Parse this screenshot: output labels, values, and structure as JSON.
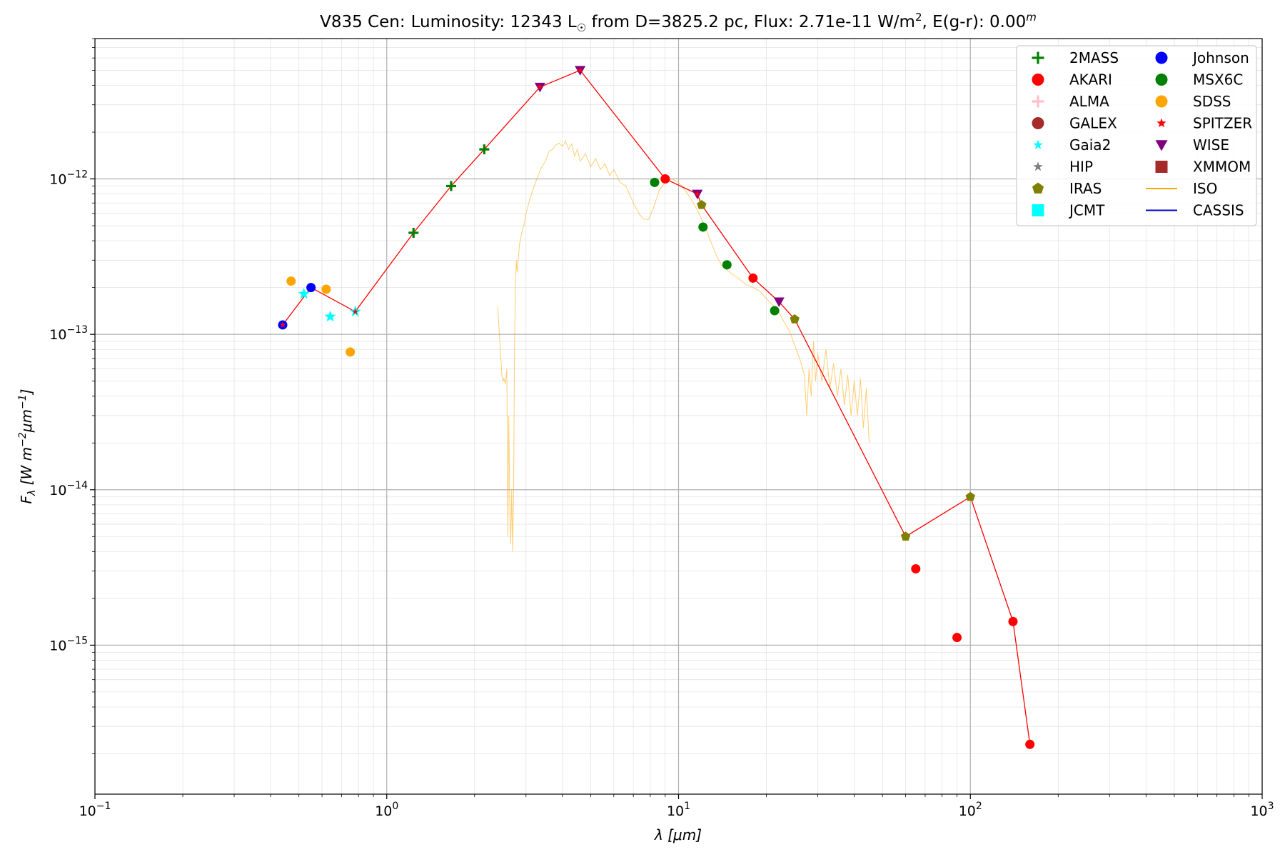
{
  "chart_data": {
    "type": "scatter",
    "title": {
      "star": "V835 Cen:",
      "lum_label": "Luminosity: 12343 L",
      "lum_sub": "☉",
      "dist": " from D=3825.2 pc, Flux: 2.71e-11 W/m",
      "flux_sup": "2",
      "ext": ", E(g-r): 0.00",
      "ext_sup": "m"
    },
    "xlabel": {
      "main": "λ ",
      "unit": "[μm]"
    },
    "ylabel": {
      "f": "F",
      "sub": "λ",
      "b1": " [W m",
      "e1": "−2",
      "b2": "μm",
      "e2": "−1",
      "b3": "]"
    },
    "x_scale": "log",
    "y_scale": "log",
    "xlim": [
      0.1,
      1000
    ],
    "ylim": [
      1.1e-16,
      8e-12
    ],
    "grid": true,
    "legend_position": "top-right",
    "xticks": [
      {
        "value": 0.1,
        "base": "10",
        "exp": "−1"
      },
      {
        "value": 1,
        "base": "10",
        "exp": "0"
      },
      {
        "value": 10,
        "base": "10",
        "exp": "1"
      },
      {
        "value": 100,
        "base": "10",
        "exp": "2"
      },
      {
        "value": 1000,
        "base": "10",
        "exp": "3"
      }
    ],
    "yticks": [
      {
        "value": 1e-15,
        "base": "10",
        "exp": "−15"
      },
      {
        "value": 1e-14,
        "base": "10",
        "exp": "−14"
      },
      {
        "value": 1e-13,
        "base": "10",
        "exp": "−13"
      },
      {
        "value": 1e-12,
        "base": "10",
        "exp": "−12"
      }
    ],
    "legend": [
      {
        "label": "2MASS",
        "marker": "plus",
        "color": "#008000"
      },
      {
        "label": "AKARI",
        "marker": "circle",
        "color": "#ff0000"
      },
      {
        "label": "ALMA",
        "marker": "plus",
        "color": "#ffc0cb"
      },
      {
        "label": "GALEX",
        "marker": "circle",
        "color": "#a52a2a"
      },
      {
        "label": "Gaia2",
        "marker": "star",
        "color": "#00ffff"
      },
      {
        "label": "HIP",
        "marker": "star",
        "color": "#808080"
      },
      {
        "label": "IRAS",
        "marker": "pentagon",
        "color": "#808000"
      },
      {
        "label": "JCMT",
        "marker": "square",
        "color": "#00ffff"
      },
      {
        "label": "Johnson",
        "marker": "circle",
        "color": "#0000ff"
      },
      {
        "label": "MSX6C",
        "marker": "circle",
        "color": "#008000"
      },
      {
        "label": "SDSS",
        "marker": "circle",
        "color": "#ffa500"
      },
      {
        "label": "SPITZER",
        "marker": "star",
        "color": "#ff0000"
      },
      {
        "label": "WISE",
        "marker": "triangle-down",
        "color": "#800080"
      },
      {
        "label": "XMMOM",
        "marker": "square",
        "color": "#a52a2a"
      },
      {
        "label": "ISO",
        "marker": "line",
        "color": "#ffa500"
      },
      {
        "label": "CASSIS",
        "marker": "line",
        "color": "#0000cc"
      }
    ],
    "series": [
      {
        "name": "2MASS",
        "marker": "plus",
        "color": "#008000",
        "points": [
          [
            1.235,
            4.5e-13
          ],
          [
            1.662,
            9e-13
          ],
          [
            2.159,
            1.55e-12
          ]
        ]
      },
      {
        "name": "AKARI",
        "marker": "circle",
        "color": "#ff0000",
        "points": [
          [
            9.0,
            1e-12
          ],
          [
            18.0,
            2.3e-13
          ],
          [
            65.0,
            3.1e-15
          ],
          [
            90.0,
            1.12e-15
          ],
          [
            140.0,
            1.42e-15
          ],
          [
            160.0,
            2.3e-16
          ]
        ]
      },
      {
        "name": "Johnson",
        "marker": "circle",
        "color": "#0000ff",
        "points": [
          [
            0.44,
            1.15e-13
          ],
          [
            0.55,
            2e-13
          ]
        ]
      },
      {
        "name": "MSX6C",
        "marker": "circle",
        "color": "#008000",
        "points": [
          [
            8.28,
            9.5e-13
          ],
          [
            12.13,
            4.9e-13
          ],
          [
            14.65,
            2.8e-13
          ],
          [
            21.34,
            1.42e-13
          ]
        ]
      },
      {
        "name": "SDSS",
        "marker": "circle",
        "color": "#ffa500",
        "points": [
          [
            0.47,
            2.2e-13
          ],
          [
            0.62,
            1.95e-13
          ],
          [
            0.75,
            7.7e-14
          ]
        ]
      },
      {
        "name": "Gaia2",
        "marker": "star",
        "color": "#00ffff",
        "points": [
          [
            0.52,
            1.82e-13
          ],
          [
            0.64,
            1.3e-13
          ],
          [
            0.78,
            1.4e-13
          ]
        ]
      },
      {
        "name": "IRAS",
        "marker": "pentagon",
        "color": "#808000",
        "points": [
          [
            12.0,
            6.8e-13
          ],
          [
            25.0,
            1.25e-13
          ],
          [
            60.0,
            5e-15
          ],
          [
            100.0,
            9e-15
          ]
        ]
      },
      {
        "name": "WISE",
        "marker": "triangle-down",
        "color": "#800080",
        "points": [
          [
            3.35,
            3.9e-12
          ],
          [
            4.6,
            5e-12
          ],
          [
            11.6,
            8e-13
          ],
          [
            22.1,
            1.62e-13
          ]
        ]
      },
      {
        "name": "SPITZER",
        "marker": "star",
        "color": "#ff0000",
        "points": [
          [
            0.44,
            1.15e-13
          ],
          [
            0.78,
            1.4e-13
          ],
          [
            3.35,
            3.9e-12
          ],
          [
            4.6,
            5e-12
          ],
          [
            11.6,
            8e-13
          ]
        ]
      }
    ],
    "sed_line": {
      "color": "#ff0000",
      "points": [
        [
          0.44,
          1.15e-13
        ],
        [
          0.55,
          2e-13
        ],
        [
          0.78,
          1.4e-13
        ],
        [
          1.235,
          4.5e-13
        ],
        [
          1.662,
          9e-13
        ],
        [
          2.159,
          1.55e-12
        ],
        [
          3.35,
          3.9e-12
        ],
        [
          4.6,
          5e-12
        ],
        [
          9.0,
          1e-12
        ],
        [
          11.6,
          8e-13
        ],
        [
          12.0,
          6.8e-13
        ],
        [
          18.0,
          2.3e-13
        ],
        [
          22.1,
          1.62e-13
        ],
        [
          25.0,
          1.25e-13
        ],
        [
          60.0,
          5e-15
        ],
        [
          100.0,
          9e-15
        ],
        [
          140.0,
          1.42e-15
        ],
        [
          160.0,
          2.3e-16
        ]
      ]
    },
    "iso_spectrum": {
      "color": "#ffa500",
      "points": [
        [
          2.4,
          1.5e-13
        ],
        [
          2.45,
          8e-14
        ],
        [
          2.48,
          5.5e-14
        ],
        [
          2.5,
          5e-14
        ],
        [
          2.52,
          5.2e-14
        ],
        [
          2.55,
          4.8e-14
        ],
        [
          2.58,
          6e-14
        ],
        [
          2.6,
          5e-15
        ],
        [
          2.62,
          3e-14
        ],
        [
          2.64,
          8e-15
        ],
        [
          2.66,
          4.5e-15
        ],
        [
          2.68,
          1e-14
        ],
        [
          2.7,
          4e-15
        ],
        [
          2.72,
          9e-15
        ],
        [
          2.74,
          8e-14
        ],
        [
          2.76,
          2e-13
        ],
        [
          2.78,
          3e-13
        ],
        [
          2.8,
          2.5e-13
        ],
        [
          2.85,
          3.8e-13
        ],
        [
          2.9,
          4.5e-13
        ],
        [
          2.95,
          5e-13
        ],
        [
          3.0,
          6e-13
        ],
        [
          3.1,
          7.5e-13
        ],
        [
          3.2,
          9e-13
        ],
        [
          3.3,
          1.05e-12
        ],
        [
          3.4,
          1.2e-12
        ],
        [
          3.5,
          1.3e-12
        ],
        [
          3.6,
          1.5e-12
        ],
        [
          3.7,
          1.55e-12
        ],
        [
          3.8,
          1.65e-12
        ],
        [
          3.9,
          1.7e-12
        ],
        [
          4.0,
          1.62e-12
        ],
        [
          4.1,
          1.75e-12
        ],
        [
          4.2,
          1.55e-12
        ],
        [
          4.3,
          1.68e-12
        ],
        [
          4.4,
          1.4e-12
        ],
        [
          4.5,
          1.55e-12
        ],
        [
          4.6,
          1.3e-12
        ],
        [
          4.8,
          1.45e-12
        ],
        [
          5.0,
          1.2e-12
        ],
        [
          5.2,
          1.35e-12
        ],
        [
          5.4,
          1.15e-12
        ],
        [
          5.6,
          1.25e-12
        ],
        [
          5.8,
          1.05e-12
        ],
        [
          6.0,
          1.15e-12
        ],
        [
          6.3,
          9.5e-13
        ],
        [
          6.6,
          9e-13
        ],
        [
          7.0,
          7e-13
        ],
        [
          7.3,
          6e-13
        ],
        [
          7.6,
          5.5e-13
        ],
        [
          7.9,
          5.5e-13
        ],
        [
          8.2,
          6.5e-13
        ],
        [
          8.6,
          8.5e-13
        ],
        [
          9.0,
          9.5e-13
        ],
        [
          9.5,
          1e-12
        ],
        [
          10.0,
          9.5e-13
        ],
        [
          10.5,
          8.5e-13
        ],
        [
          11.0,
          7.5e-13
        ],
        [
          11.5,
          6.5e-13
        ],
        [
          12.0,
          5.5e-13
        ],
        [
          12.5,
          4.6e-13
        ],
        [
          13.0,
          3.8e-13
        ],
        [
          13.5,
          3.2e-13
        ],
        [
          14.0,
          2.8e-13
        ],
        [
          15.0,
          2.5e-13
        ],
        [
          16.0,
          2.3e-13
        ],
        [
          17.0,
          2.1e-13
        ],
        [
          18.0,
          2e-13
        ],
        [
          19.0,
          1.9e-13
        ],
        [
          20.0,
          1.7e-13
        ],
        [
          21.0,
          1.55e-13
        ],
        [
          22.0,
          1.4e-13
        ],
        [
          23.0,
          1.2e-13
        ],
        [
          24.0,
          1.05e-13
        ],
        [
          25.0,
          8.5e-14
        ],
        [
          26.0,
          7e-14
        ],
        [
          27.0,
          5.5e-14
        ],
        [
          27.5,
          3e-14
        ],
        [
          28.0,
          6e-14
        ],
        [
          28.5,
          4e-14
        ],
        [
          29.0,
          9e-14
        ],
        [
          29.5,
          5e-14
        ],
        [
          30.0,
          7.5e-14
        ],
        [
          31.0,
          5e-14
        ],
        [
          32.0,
          8e-14
        ],
        [
          33.0,
          4.5e-14
        ],
        [
          34.0,
          6.5e-14
        ],
        [
          35.0,
          4e-14
        ],
        [
          36.0,
          6e-14
        ],
        [
          37.0,
          3.5e-14
        ],
        [
          38.0,
          5.5e-14
        ],
        [
          39.0,
          3e-14
        ],
        [
          40.0,
          5e-14
        ],
        [
          41.0,
          3e-14
        ],
        [
          42.0,
          5.2e-14
        ],
        [
          43.0,
          2.5e-14
        ],
        [
          44.0,
          4.5e-14
        ],
        [
          45.0,
          2e-14
        ]
      ]
    }
  }
}
